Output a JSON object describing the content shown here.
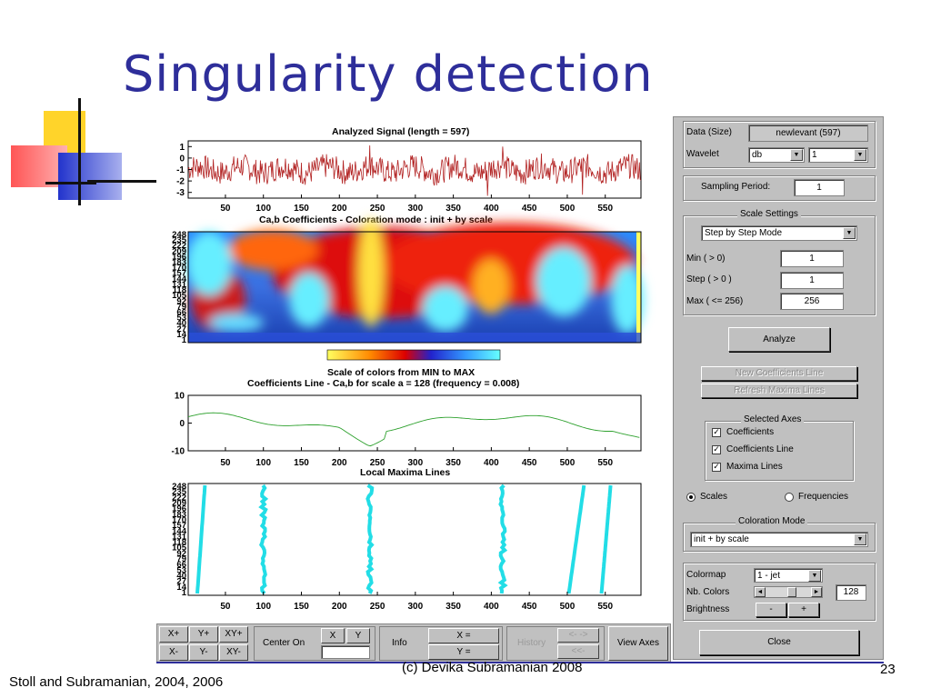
{
  "slide": {
    "title": "Singularity detection",
    "footer_left": "Stoll and Subramanian, 2004, 2006",
    "footer_center": "(c) Devika Subramanian 2008",
    "page_number": "23"
  },
  "plots": {
    "signal_title": "Analyzed Signal  (length = 597)",
    "signal_yticks": [
      "1",
      "0",
      "-1",
      "-2",
      "-3"
    ],
    "coef_title": "Ca,b Coefficients  - Coloration mode : init + by scale",
    "scale_yticks": [
      "248",
      "235",
      "222",
      "209",
      "196",
      "183",
      "170",
      "157",
      "144",
      "131",
      "118",
      "105",
      "92",
      "79",
      "66",
      "53",
      "40",
      "27",
      "14",
      "1"
    ],
    "colorbar_label": "Scale of colors from MIN to MAX",
    "line_title": "Coefficients Line - Ca,b   for scale a = 128  (frequency =   0.008)",
    "line_yticks": [
      "10",
      "0",
      "-10"
    ],
    "maxima_title": "Local Maxima Lines",
    "xticks": [
      "50",
      "100",
      "150",
      "200",
      "250",
      "300",
      "350",
      "400",
      "450",
      "500",
      "550"
    ]
  },
  "chart_data": {
    "type": "line",
    "title": "Analyzed Signal  (length = 597)",
    "x_range": [
      1,
      597
    ],
    "ylim": [
      -3.5,
      1.5
    ],
    "xticks": [
      50,
      100,
      150,
      200,
      250,
      300,
      350,
      400,
      450,
      500,
      550
    ],
    "coefficients_line_ylim": [
      -10,
      10
    ],
    "coefficients_line_scale": 128,
    "maxima_lines_x": [
      15,
      100,
      240,
      415,
      520,
      545
    ],
    "colors": {
      "signal": "#b22222",
      "coef_line": "#2ca02c",
      "maxima": "#22dde6"
    }
  },
  "control": {
    "data_label": "Data  (Size)",
    "data_value": "newlevant  (597)",
    "wavelet_label": "Wavelet",
    "wavelet_family": "db",
    "wavelet_order": "1",
    "sampling_label": "Sampling Period:",
    "sampling_value": "1",
    "scale_settings_title": "Scale Settings",
    "scale_mode": "Step by Step Mode",
    "min_label": "Min  ( > 0)",
    "min_value": "1",
    "step_label": "Step ( > 0 )",
    "step_value": "1",
    "max_label": "Max  ( <= 256)",
    "max_value": "256",
    "analyze": "Analyze",
    "new_coef_line": "New Coefficients Line",
    "refresh_maxima": "Refresh Maxima Lines",
    "selected_axes_title": "Selected Axes",
    "axes": [
      {
        "label": "Coefficients",
        "checked": "✓"
      },
      {
        "label": "Coefficients Line",
        "checked": "✓"
      },
      {
        "label": "Maxima Lines",
        "checked": "✓"
      }
    ],
    "radio_scales": "Scales",
    "radio_frequencies": "Frequencies",
    "coloration_title": "Coloration Mode",
    "coloration_value": "init + by scale",
    "colormap_label": "Colormap",
    "colormap_value": "1 - jet",
    "nb_colors_label": "Nb. Colors",
    "nb_colors_value": "128",
    "brightness_label": "Brightness",
    "minus": "-",
    "plus": "+",
    "close": "Close"
  },
  "toolbar": {
    "xplus": "X+",
    "yplus": "Y+",
    "xyplus": "XY+",
    "xminus": "X-",
    "yminus": "Y-",
    "xyminus": "XY-",
    "center_on": "Center On",
    "x": "X",
    "y": "Y",
    "info": "Info",
    "x_eq": "X =",
    "y_eq": "Y =",
    "history": "History",
    "back": "<- ->",
    "backall": "<<-",
    "view_axes": "View Axes"
  }
}
